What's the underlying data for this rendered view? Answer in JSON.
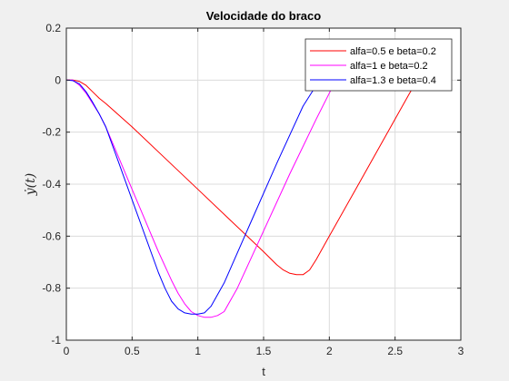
{
  "chart_data": {
    "type": "line",
    "title": "Velocidade do braco",
    "xlabel": "t",
    "ylabel": "ẏ(t)",
    "xlim": [
      0,
      3
    ],
    "ylim": [
      -1,
      0.2
    ],
    "xticks": [
      0,
      0.5,
      1,
      1.5,
      2,
      2.5,
      3
    ],
    "xtick_labels": [
      "0",
      "0.5",
      "1",
      "1.5",
      "2",
      "2.5",
      "3"
    ],
    "yticks": [
      0.2,
      0,
      -0.2,
      -0.4,
      -0.6,
      -0.8,
      -1
    ],
    "ytick_labels": [
      "0.2",
      "0",
      "-0.2",
      "-0.4",
      "-0.6",
      "-0.8",
      "-1"
    ],
    "grid": true,
    "legend_position": "top-right",
    "series": [
      {
        "name": "alfa=0.5 e beta=0.2",
        "color": "#ff0000",
        "x": [
          0,
          0.05,
          0.1,
          0.15,
          0.2,
          0.25,
          0.3,
          0.5,
          0.75,
          1.0,
          1.25,
          1.5,
          1.6,
          1.65,
          1.7,
          1.75,
          1.8,
          1.85,
          1.9,
          2.0,
          2.2,
          2.4,
          2.6,
          2.65
        ],
        "y": [
          0,
          0,
          -0.005,
          -0.02,
          -0.045,
          -0.07,
          -0.09,
          -0.18,
          -0.3,
          -0.42,
          -0.54,
          -0.66,
          -0.71,
          -0.73,
          -0.743,
          -0.748,
          -0.748,
          -0.73,
          -0.69,
          -0.6,
          -0.42,
          -0.24,
          -0.06,
          -0.015
        ]
      },
      {
        "name": "alfa=1 e beta=0.2",
        "color": "#ff00ff",
        "x": [
          0,
          0.05,
          0.1,
          0.15,
          0.2,
          0.25,
          0.3,
          0.4,
          0.5,
          0.6,
          0.7,
          0.8,
          0.85,
          0.9,
          0.95,
          1.0,
          1.05,
          1.1,
          1.15,
          1.2,
          1.3,
          1.5,
          1.7,
          1.9,
          2.0,
          2.05
        ],
        "y": [
          0,
          0,
          -0.02,
          -0.05,
          -0.09,
          -0.13,
          -0.18,
          -0.3,
          -0.42,
          -0.54,
          -0.66,
          -0.77,
          -0.82,
          -0.86,
          -0.89,
          -0.905,
          -0.912,
          -0.912,
          -0.905,
          -0.89,
          -0.8,
          -0.58,
          -0.36,
          -0.15,
          -0.05,
          0
        ]
      },
      {
        "name": "alfa=1.3 e beta=0.4",
        "color": "#0000ff",
        "x": [
          0,
          0.05,
          0.1,
          0.15,
          0.2,
          0.25,
          0.3,
          0.4,
          0.5,
          0.6,
          0.7,
          0.75,
          0.8,
          0.85,
          0.9,
          0.95,
          1.0,
          1.05,
          1.1,
          1.2,
          1.4,
          1.6,
          1.8,
          1.9,
          1.95
        ],
        "y": [
          0,
          -0.002,
          -0.015,
          -0.045,
          -0.085,
          -0.13,
          -0.18,
          -0.32,
          -0.46,
          -0.6,
          -0.74,
          -0.8,
          -0.85,
          -0.88,
          -0.895,
          -0.9,
          -0.9,
          -0.895,
          -0.87,
          -0.78,
          -0.55,
          -0.32,
          -0.1,
          -0.02,
          0
        ]
      }
    ]
  }
}
